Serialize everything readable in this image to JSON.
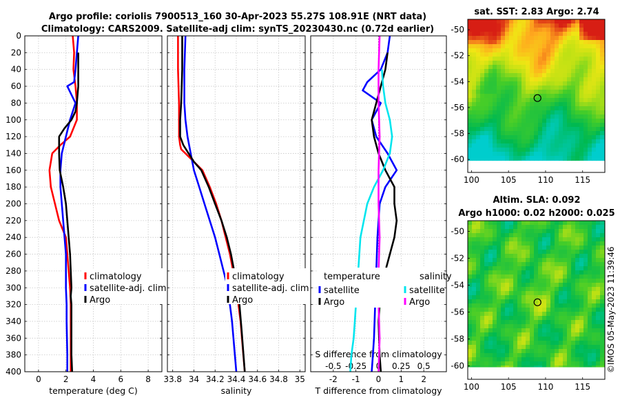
{
  "title_line1": "Argo profile: coriolis 7900513_160 30-Apr-2023 55.27S 108.91E (NRT data)",
  "title_line2": "Climatology: CARS2009. Satellite-adj clim: synTS_20230430.nc (0.72d earlier)",
  "watermark": "©IMOS 05-May-2023 11:39:46",
  "colors": {
    "climatology": "#ff0000",
    "satellite": "#0000ff",
    "argo": "#000000",
    "cyan": "#00e5ee",
    "magenta": "#ff00ff",
    "dotted": "#b000b0"
  },
  "chart_data": [
    {
      "type": "line",
      "name": "temperature",
      "xlabel": "temperature (deg C)",
      "ylabel": "",
      "xlim": [
        -1,
        9
      ],
      "ylim": [
        400,
        0
      ],
      "xticks": [
        "0",
        "2",
        "4",
        "6",
        "8"
      ],
      "xtick_values": [
        0,
        2,
        4,
        6,
        8
      ],
      "yticks": [
        "0",
        "20",
        "40",
        "60",
        "80",
        "100",
        "120",
        "140",
        "160",
        "180",
        "200",
        "220",
        "240",
        "260",
        "280",
        "300",
        "320",
        "340",
        "360",
        "380",
        "400"
      ],
      "grid": true,
      "legend": {
        "position": "right-middle",
        "entries": [
          "climatology",
          "satellite-adj. clim",
          "Argo"
        ]
      },
      "series": [
        {
          "name": "climatology",
          "color": "climatology",
          "x": [
            2.5,
            2.6,
            2.55,
            2.7,
            2.8,
            2.8,
            2.3,
            1.6,
            1.0,
            0.8,
            0.9,
            1.2,
            1.5,
            2.0,
            2.1,
            2.2,
            2.3,
            2.35,
            2.35,
            2.35,
            2.35
          ],
          "y": [
            0,
            20,
            40,
            60,
            80,
            100,
            120,
            130,
            140,
            160,
            180,
            200,
            220,
            240,
            260,
            280,
            300,
            320,
            340,
            380,
            400
          ]
        },
        {
          "name": "satellite-adj. clim",
          "color": "satellite",
          "x": [
            2.9,
            2.8,
            2.7,
            2.6,
            2.1,
            2.7,
            2.3,
            2.0,
            1.7,
            1.6,
            1.6,
            1.7,
            1.8,
            1.9,
            2.0,
            2.0,
            2.0,
            2.05,
            2.05,
            2.1,
            2.1
          ],
          "y": [
            0,
            20,
            40,
            55,
            60,
            80,
            100,
            120,
            140,
            160,
            180,
            200,
            220,
            240,
            260,
            280,
            300,
            320,
            340,
            380,
            400
          ]
        },
        {
          "name": "Argo",
          "color": "argo",
          "x": [
            2.9,
            2.9,
            2.9,
            2.8,
            2.7,
            2.4,
            1.9,
            1.5,
            1.5,
            1.55,
            1.8,
            2.0,
            2.1,
            2.2,
            2.3,
            2.35,
            2.4,
            2.35,
            2.4,
            2.4,
            2.45
          ],
          "y": [
            20,
            40,
            60,
            80,
            90,
            100,
            110,
            120,
            140,
            160,
            180,
            200,
            220,
            240,
            260,
            280,
            300,
            310,
            320,
            380,
            400
          ]
        }
      ]
    },
    {
      "type": "line",
      "name": "salinity",
      "xlabel": "salinity",
      "ylabel": "",
      "xlim": [
        33.75,
        35.05
      ],
      "ylim": [
        400,
        0
      ],
      "xticks": [
        "33.8",
        "34",
        "34.2",
        "34.4",
        "34.6",
        "34.8",
        "35"
      ],
      "xtick_values": [
        33.8,
        34.0,
        34.2,
        34.4,
        34.6,
        34.8,
        35.0
      ],
      "grid": true,
      "legend": {
        "position": "right-middle",
        "entries": [
          "climatology",
          "satellite-adj. clim",
          "Argo"
        ]
      },
      "series": [
        {
          "name": "climatology",
          "color": "climatology",
          "x": [
            33.85,
            33.85,
            33.86,
            33.86,
            33.87,
            33.88,
            33.92,
            34.0,
            34.08,
            34.15,
            34.21,
            34.26,
            34.3,
            34.34,
            34.37,
            34.4,
            34.42,
            34.44,
            34.46,
            34.48
          ],
          "y": [
            0,
            40,
            80,
            120,
            130,
            135,
            140,
            150,
            160,
            180,
            200,
            220,
            240,
            260,
            280,
            300,
            320,
            340,
            370,
            400
          ]
        },
        {
          "name": "satellite-adj. clim",
          "color": "satellite",
          "x": [
            33.92,
            33.91,
            33.91,
            33.92,
            33.94,
            33.97,
            34.0,
            34.05,
            34.1,
            34.15,
            34.2,
            34.24,
            34.28,
            34.32,
            34.36,
            34.4
          ],
          "y": [
            0,
            40,
            80,
            100,
            120,
            140,
            160,
            180,
            200,
            220,
            240,
            260,
            280,
            300,
            340,
            400
          ]
        },
        {
          "name": "Argo",
          "color": "argo",
          "x": [
            33.89,
            33.89,
            33.88,
            33.87,
            33.87,
            33.9,
            33.95,
            34.0,
            34.07,
            34.14,
            34.2,
            34.26,
            34.31,
            34.35,
            34.38,
            34.41,
            34.43,
            34.45,
            34.48
          ],
          "y": [
            0,
            40,
            80,
            100,
            120,
            130,
            140,
            150,
            160,
            180,
            200,
            220,
            240,
            260,
            280,
            300,
            320,
            350,
            400
          ]
        }
      ]
    },
    {
      "type": "line",
      "name": "difference",
      "xlabel": "T difference from climatology",
      "top_label": "S difference from climatology",
      "xlim": [
        -3,
        3
      ],
      "ylim": [
        400,
        0
      ],
      "xticks": [
        "-2",
        "-1",
        "0",
        "1",
        "2"
      ],
      "xtick_values": [
        -2,
        -1,
        0,
        1,
        2
      ],
      "top_ticks": [
        "-0.5",
        "-0.25",
        "0",
        "0.25",
        "0.5"
      ],
      "top_tick_values": [
        -2,
        -1,
        0,
        1,
        2
      ],
      "grid": true,
      "legend": {
        "position": "right-middle",
        "temp_header": "temperature",
        "sal_header": "salinity",
        "temp_entries": [
          "satellite",
          "Argo"
        ],
        "sal_entries": [
          "satellite",
          "Argo"
        ]
      },
      "series": [
        {
          "name": "T satellite",
          "color": "satellite",
          "x": [
            0.5,
            0.4,
            0.1,
            -0.5,
            -0.7,
            0.1,
            -0.3,
            -0.1,
            0.4,
            0.8,
            0.3,
            0.05,
            -0.05,
            -0.1,
            -0.15,
            -0.2,
            -0.25,
            -0.3
          ],
          "y": [
            0,
            20,
            40,
            55,
            65,
            80,
            100,
            120,
            140,
            160,
            180,
            200,
            240,
            280,
            320,
            360,
            380,
            400
          ]
        },
        {
          "name": "T Argo",
          "color": "argo",
          "x": [
            0.4,
            0.3,
            0.1,
            -0.1,
            -0.3,
            -0.2,
            0.0,
            0.3,
            0.7,
            0.7,
            0.8,
            0.7,
            0.5,
            0.3,
            0.1,
            0.0,
            0.05,
            0.1
          ],
          "y": [
            20,
            40,
            60,
            80,
            100,
            120,
            140,
            160,
            180,
            200,
            220,
            240,
            260,
            280,
            300,
            340,
            380,
            400
          ]
        },
        {
          "name": "S satellite",
          "color": "cyan",
          "x": [
            0.15,
            0.2,
            0.3,
            0.5,
            0.6,
            0.5,
            0.2,
            -0.2,
            -0.5,
            -0.8,
            -0.9,
            -1.0,
            -1.1,
            -1.2,
            -1.25
          ],
          "y": [
            40,
            60,
            80,
            100,
            120,
            140,
            160,
            180,
            200,
            240,
            280,
            320,
            360,
            380,
            400
          ]
        },
        {
          "name": "S Argo",
          "color": "magenta",
          "x": [
            0.05,
            0.0,
            0.0,
            0.05,
            0.0,
            0.0,
            0.05,
            0.0,
            0.0,
            0.05,
            0.0
          ],
          "y": [
            0,
            40,
            80,
            120,
            160,
            200,
            240,
            280,
            320,
            360,
            400
          ]
        }
      ]
    },
    {
      "type": "heatmap",
      "name": "sst_map",
      "title": "sat. SST: 2.83 Argo: 2.74",
      "xticks": [
        "100",
        "105",
        "110",
        "115"
      ],
      "xtick_values": [
        100,
        105,
        110,
        115
      ],
      "yticks": [
        "-50",
        "-52",
        "-54",
        "-56",
        "-58",
        "-60"
      ],
      "ytick_values": [
        -50,
        -52,
        -54,
        -56,
        -58,
        -60
      ],
      "xlim": [
        99.5,
        118
      ],
      "ylim": [
        -61,
        -49.2
      ],
      "marker": {
        "lon": 108.91,
        "lat": -55.27
      }
    },
    {
      "type": "heatmap",
      "name": "sla_map",
      "title_line1": "Altim. SLA: 0.092",
      "title_line2": "Argo h1000: 0.02 h2000: 0.025",
      "xticks": [
        "100",
        "105",
        "110",
        "115"
      ],
      "xtick_values": [
        100,
        105,
        110,
        115
      ],
      "yticks": [
        "-50",
        "-52",
        "-54",
        "-56",
        "-58",
        "-60"
      ],
      "ytick_values": [
        -50,
        -52,
        -54,
        -56,
        -58,
        -60
      ],
      "xlim": [
        99.5,
        118
      ],
      "ylim": [
        -61,
        -49.2
      ],
      "marker": {
        "lon": 108.91,
        "lat": -55.27
      }
    }
  ]
}
